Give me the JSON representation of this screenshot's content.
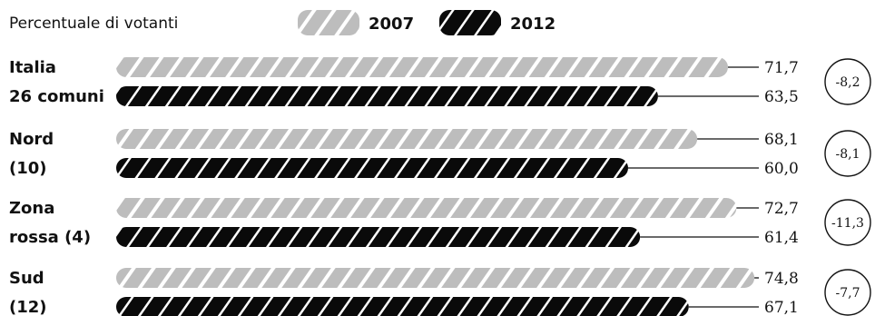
{
  "chart_data": {
    "type": "bar",
    "orientation": "horizontal",
    "title": "Percentuale di votanti",
    "categories": [
      [
        "Italia",
        "26 comuni"
      ],
      [
        "Nord",
        "(10)"
      ],
      [
        "Zona",
        "rossa (4)"
      ],
      [
        "Sud",
        "(12)"
      ]
    ],
    "series": [
      {
        "name": "2007",
        "values": [
          71.7,
          68.1,
          72.7,
          74.8
        ],
        "labels": [
          "71,7",
          "68,1",
          "72,7",
          "74,8"
        ],
        "style": "light-hatched"
      },
      {
        "name": "2012",
        "values": [
          63.5,
          60.0,
          61.4,
          67.1
        ],
        "labels": [
          "63,5",
          "60,0",
          "61,4",
          "67,1"
        ],
        "style": "dark-hatched"
      }
    ],
    "differences": [
      "-8,2",
      "-8,1",
      "-11,3",
      "-7,7"
    ],
    "legend": "top"
  }
}
